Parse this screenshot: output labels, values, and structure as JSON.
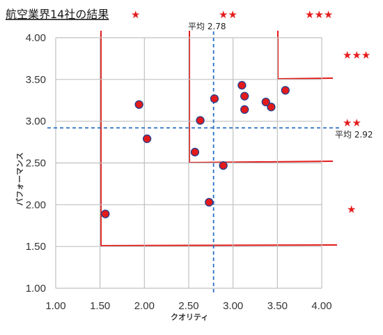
{
  "chart_data": {
    "type": "scatter",
    "title": "航空業界14社の結果",
    "xlabel": "クオリティ",
    "ylabel": "パフォーマンス",
    "xlim": [
      1.0,
      4.0
    ],
    "ylim": [
      1.0,
      4.0
    ],
    "x_ticks": [
      "1.00",
      "1.50",
      "2.00",
      "2.50",
      "3.00",
      "3.50",
      "4.00"
    ],
    "y_ticks": [
      "1.00",
      "1.50",
      "2.00",
      "2.50",
      "3.00",
      "3.50",
      "4.00"
    ],
    "grid": true,
    "points": [
      {
        "x": 1.56,
        "y": 1.89
      },
      {
        "x": 1.94,
        "y": 3.2
      },
      {
        "x": 2.03,
        "y": 2.79
      },
      {
        "x": 2.57,
        "y": 2.63
      },
      {
        "x": 2.63,
        "y": 3.01
      },
      {
        "x": 2.73,
        "y": 2.03
      },
      {
        "x": 2.79,
        "y": 3.27
      },
      {
        "x": 2.89,
        "y": 2.47
      },
      {
        "x": 3.1,
        "y": 3.43
      },
      {
        "x": 3.13,
        "y": 3.3
      },
      {
        "x": 3.13,
        "y": 3.14
      },
      {
        "x": 3.37,
        "y": 3.23
      },
      {
        "x": 3.43,
        "y": 3.17
      },
      {
        "x": 3.59,
        "y": 3.37
      }
    ],
    "averages": {
      "x": {
        "value": 2.78,
        "label": "平均 2.78"
      },
      "y": {
        "value": 2.92,
        "label": "平均 2.92"
      }
    },
    "rank_stars": {
      "one": "★",
      "two": "★★",
      "three": "★★★"
    }
  },
  "colors": {
    "points": "#e31a1a",
    "point_edge": "#1f3f8f",
    "zones": "#e31a1a",
    "average_lines": "#2a6fc4",
    "grid": "#c0c0c0",
    "stars": "#e51b1b"
  }
}
